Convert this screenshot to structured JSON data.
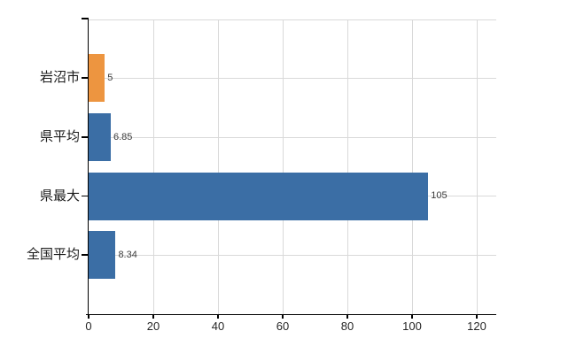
{
  "chart_data": {
    "type": "bar",
    "orientation": "horizontal",
    "title": "",
    "categories": [
      "岩沼市",
      "県平均",
      "県最大",
      "全国平均"
    ],
    "values": [
      5,
      6.85,
      105,
      8.34
    ],
    "value_labels": [
      "5",
      "6.85",
      "105",
      "8.34"
    ],
    "bar_colors": [
      "#ED9540",
      "#3B6EA5",
      "#3B6EA5",
      "#3B6EA5"
    ],
    "x_tick_labels": [
      "0",
      "20",
      "40",
      "60",
      "80",
      "100",
      "120"
    ],
    "x_tick_values": [
      0,
      20,
      40,
      60,
      80,
      100,
      120
    ],
    "xlim": [
      0,
      126
    ],
    "grid": true,
    "legend": false,
    "colors": {
      "grid": "#D9D9D9",
      "axis": "#000000",
      "tick_label": "#262626",
      "category_label": "#1A1A1A",
      "value_label": "#3C3C3C",
      "bar_blue": "#3B6EA5",
      "bar_orange": "#ED9540",
      "background": "#FFFFFF"
    }
  }
}
